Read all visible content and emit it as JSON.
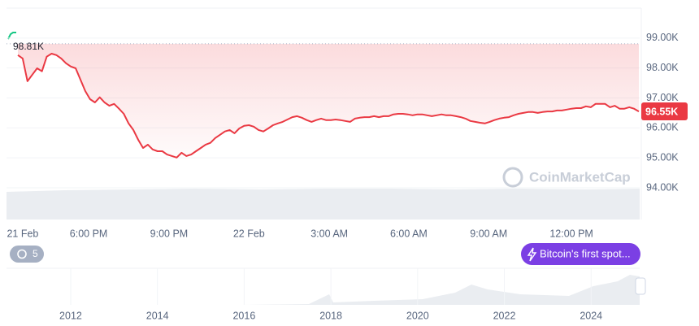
{
  "chart_data": [
    {
      "type": "line",
      "color": "#ea3943",
      "values": [
        98430,
        98320,
        97560,
        97780,
        97990,
        97890,
        98380,
        98480,
        98430,
        98320,
        98160,
        98050,
        97990,
        97610,
        97230,
        96960,
        96850,
        97020,
        96850,
        96740,
        96800,
        96640,
        96470,
        96150,
        95930,
        95600,
        95330,
        95440,
        95280,
        95220,
        95220,
        95110,
        95060,
        95010,
        95170,
        95060,
        95110,
        95220,
        95330,
        95440,
        95500,
        95660,
        95770,
        95880,
        95930,
        95820,
        95980,
        96070,
        96090,
        96040,
        95930,
        95880,
        95980,
        96090,
        96150,
        96200,
        96280,
        96360,
        96390,
        96340,
        96260,
        96200,
        96260,
        96310,
        96260,
        96260,
        96280,
        96260,
        96230,
        96200,
        96310,
        96340,
        96360,
        96360,
        96390,
        96360,
        96390,
        96390,
        96450,
        96470,
        96470,
        96450,
        96420,
        96450,
        96450,
        96420,
        96390,
        96420,
        96450,
        96420,
        96420,
        96390,
        96360,
        96310,
        96230,
        96200,
        96170,
        96150,
        96200,
        96260,
        96310,
        96340,
        96360,
        96420,
        96470,
        96500,
        96530,
        96530,
        96500,
        96530,
        96550,
        96550,
        96580,
        96580,
        96610,
        96640,
        96660,
        96660,
        96720,
        96690,
        96800,
        96800,
        96800,
        96690,
        96740,
        96640,
        96640,
        96690,
        96640,
        96550
      ],
      "ylim": [
        92940,
        100000
      ],
      "yticks": [
        {
          "value": 94000,
          "label": "94.00K"
        },
        {
          "value": 95000,
          "label": "95.00K"
        },
        {
          "value": 96000,
          "label": "96.00K"
        },
        {
          "value": 97000,
          "label": "97.00K"
        },
        {
          "value": 98000,
          "label": "98.00K"
        },
        {
          "value": 99000,
          "label": "99.00K"
        }
      ],
      "xticks": [
        {
          "value": 1,
          "label": "21 Feb"
        },
        {
          "value": 14.7,
          "label": "6:00 PM"
        },
        {
          "value": 31.4,
          "label": "9:00 PM"
        },
        {
          "value": 48,
          "label": "22 Feb"
        },
        {
          "value": 64.7,
          "label": "3:00 AM"
        },
        {
          "value": 81.2,
          "label": "6:00 AM"
        },
        {
          "value": 97.8,
          "label": "9:00 AM"
        },
        {
          "value": 115,
          "label": "12:00 PM"
        }
      ],
      "annotations": [
        {
          "value": 98810,
          "label": "98.81K"
        },
        {
          "value": 96550,
          "label": "96.55K"
        }
      ],
      "watermark": "CoinMarketCap",
      "event": "Bitcoin's first spot...",
      "event_count": 5,
      "grid": true
    },
    {
      "type": "navigator",
      "xlim": [
        2010.52,
        2025.12
      ],
      "xticks": [
        2012,
        2014,
        2016,
        2018,
        2020,
        2022,
        2024
      ]
    }
  ]
}
